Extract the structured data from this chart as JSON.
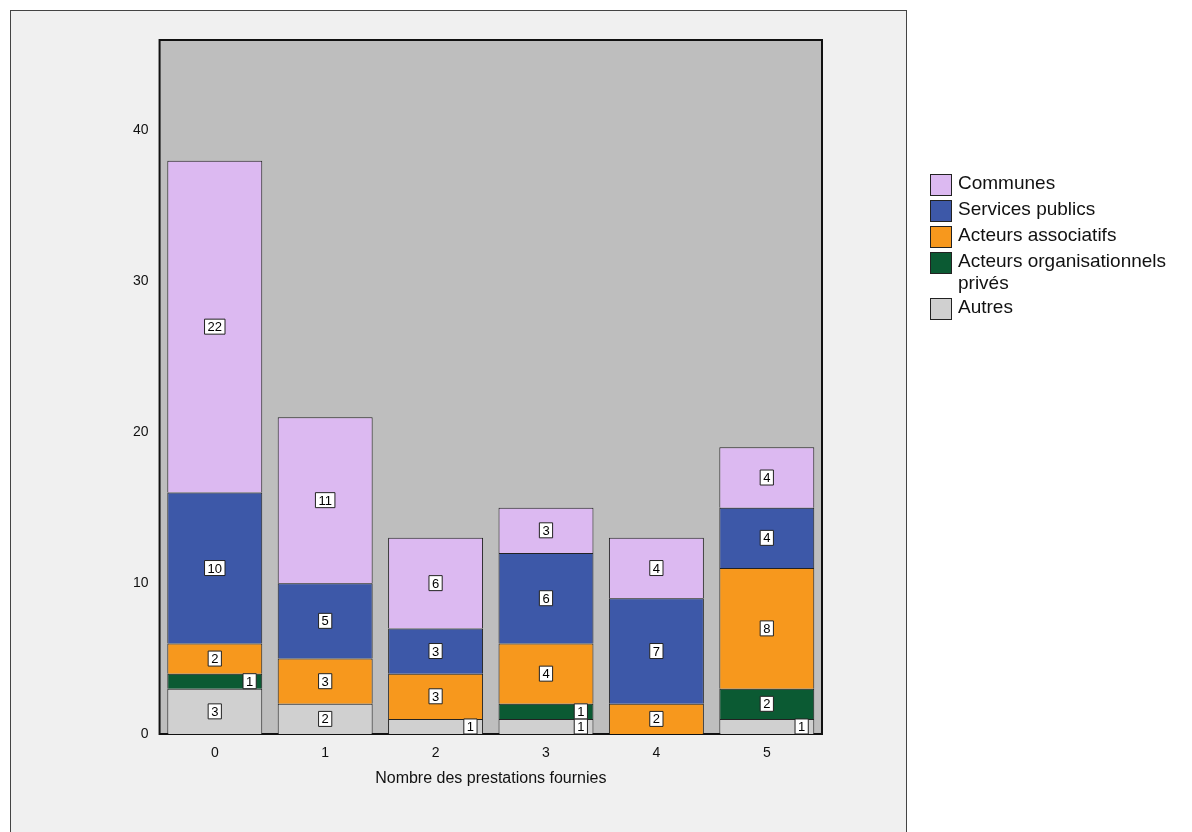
{
  "chart_data": {
    "type": "bar",
    "stacked": true,
    "xlabel": "Nombre des prestations fournies",
    "categories": [
      "0",
      "1",
      "2",
      "3",
      "4",
      "5"
    ],
    "series": [
      {
        "name": "Autres",
        "color": "#d0d0d0",
        "values": [
          3,
          2,
          1,
          1,
          null,
          1
        ]
      },
      {
        "name": "Acteurs organisationnels privés",
        "color": "#0b5a33",
        "values": [
          1,
          null,
          null,
          1,
          null,
          2
        ]
      },
      {
        "name": "Acteurs associatifs",
        "color": "#f7981d",
        "values": [
          2,
          3,
          3,
          4,
          2,
          8
        ]
      },
      {
        "name": "Services publics",
        "color": "#3d58a8",
        "values": [
          10,
          5,
          3,
          6,
          7,
          4
        ]
      },
      {
        "name": "Communes",
        "color": "#dcb9f1",
        "values": [
          22,
          11,
          6,
          3,
          4,
          4
        ]
      }
    ],
    "ylim": [
      0,
      46
    ],
    "yticks": [
      0,
      10,
      20,
      30,
      40
    ],
    "grid": false,
    "legend": "right",
    "data_labels": true
  }
}
